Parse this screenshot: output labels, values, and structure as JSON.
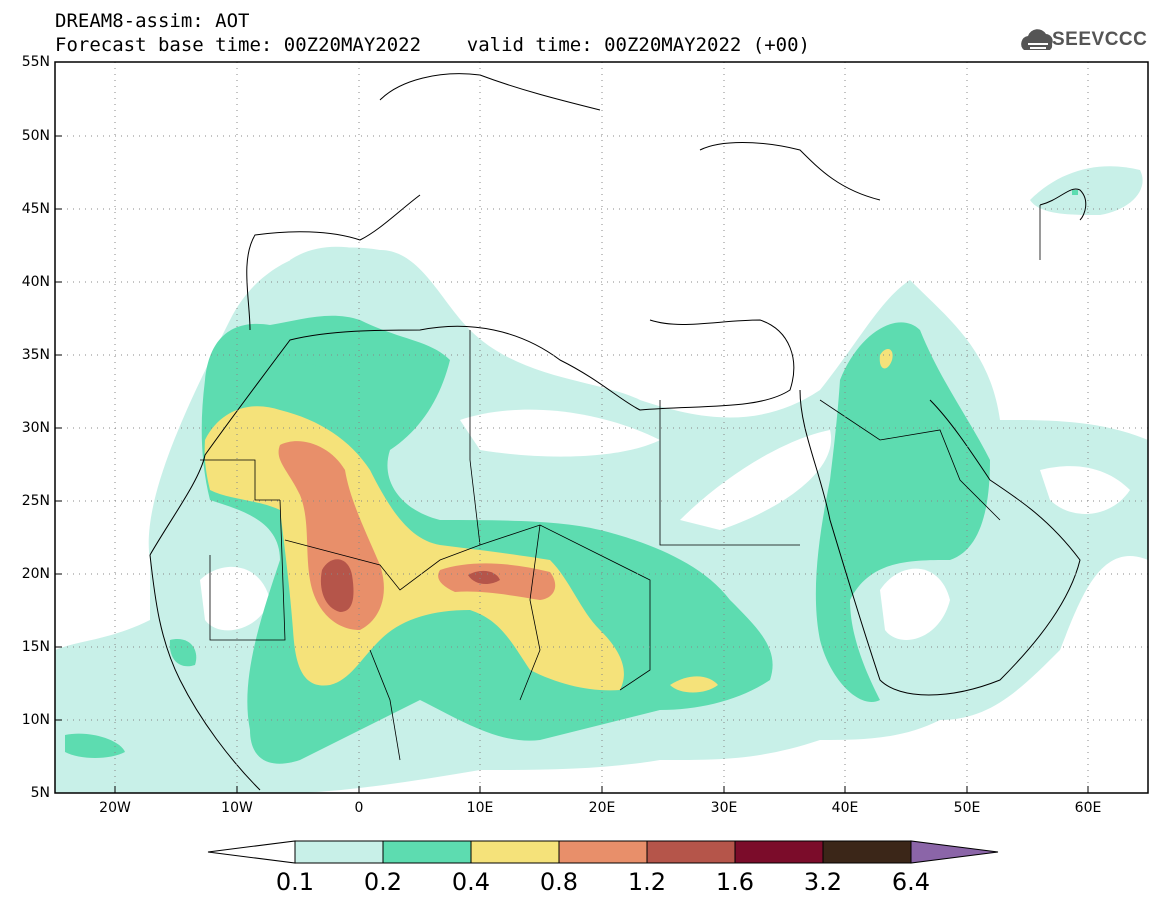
{
  "header": {
    "title_line1": "DREAM8-assim: AOT",
    "title_line2": "Forecast base time: 00Z20MAY2022    valid time: 00Z20MAY2022 (+00)",
    "logo_text": "SEEVCCC"
  },
  "map": {
    "lat_labels": [
      "55N",
      "50N",
      "45N",
      "40N",
      "35N",
      "30N",
      "25N",
      "20N",
      "15N",
      "10N",
      "5N"
    ],
    "lon_labels": [
      "20W",
      "10W",
      "0",
      "10E",
      "20E",
      "30E",
      "40E",
      "50E",
      "60E"
    ],
    "lon_range": [
      -25,
      65
    ],
    "lat_range": [
      5,
      55
    ],
    "grid": "dotted"
  },
  "colorbar": {
    "labels": [
      "0.1",
      "0.2",
      "0.4",
      "0.8",
      "1.2",
      "1.6",
      "3.2",
      "6.4"
    ],
    "colors": [
      "#ffffff",
      "#c8f0e8",
      "#5ddcb0",
      "#f5e27a",
      "#e88f6a",
      "#b5554a",
      "#7b0c2a",
      "#3b2618",
      "#8b65a8"
    ]
  }
}
